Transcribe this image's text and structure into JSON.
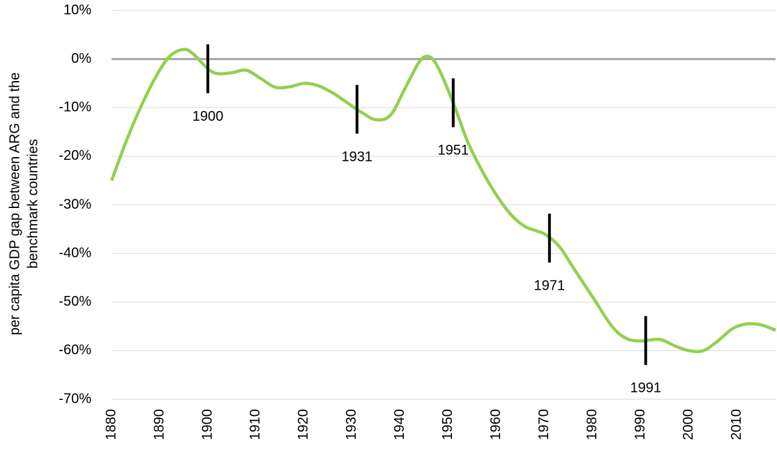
{
  "chart_data": {
    "type": "line",
    "y_label": [
      "per capita GDP gap between ARG and the",
      "benchmark countries"
    ],
    "x": [
      1880,
      1883,
      1886,
      1889,
      1892,
      1895,
      1897,
      1900,
      1902,
      1905,
      1908,
      1911,
      1914,
      1917,
      1920,
      1923,
      1926,
      1929,
      1932,
      1935,
      1938,
      1941,
      1944,
      1946,
      1948,
      1951,
      1954,
      1957,
      1960,
      1963,
      1966,
      1970,
      1973,
      1976,
      1980,
      1984,
      1987,
      1990,
      1994,
      1997,
      2000,
      2003,
      2006,
      2009,
      2012,
      2015,
      2018
    ],
    "series": [
      {
        "color": "#92d050",
        "values": [
          -25,
          -17,
          -10,
          -4,
          0.5,
          2,
          1,
          -2,
          -3,
          -2.8,
          -2.3,
          -4,
          -5.8,
          -5.7,
          -5,
          -5.5,
          -7,
          -9,
          -11,
          -12.5,
          -11.5,
          -6,
          -0.5,
          0.5,
          -2,
          -9,
          -17,
          -23,
          -28,
          -32,
          -34.5,
          -36,
          -38.5,
          -43,
          -49,
          -55,
          -57.5,
          -58,
          -57.7,
          -59,
          -60,
          -60,
          -58,
          -55.5,
          -54.5,
          -54.7,
          -55.8
        ]
      }
    ],
    "annotations": [
      1900,
      1931,
      1951,
      1971,
      1991
    ],
    "xlim": [
      1880,
      2018
    ],
    "xticks": [
      1880,
      1890,
      1900,
      1910,
      1920,
      1930,
      1940,
      1950,
      1960,
      1970,
      1980,
      1990,
      2000,
      2010
    ],
    "ylim": [
      -70,
      10
    ],
    "yticks": [
      {
        "value": -70,
        "label": "-70%"
      },
      {
        "value": -60,
        "label": "-60%"
      },
      {
        "value": -50,
        "label": "-50%"
      },
      {
        "value": -40,
        "label": "-40%"
      },
      {
        "value": -30,
        "label": "-30%"
      },
      {
        "value": -20,
        "label": "-20%"
      },
      {
        "value": -10,
        "label": "-10%"
      },
      {
        "value": 0,
        "label": "0%"
      },
      {
        "value": 10,
        "label": "10%"
      }
    ],
    "grid": true
  }
}
